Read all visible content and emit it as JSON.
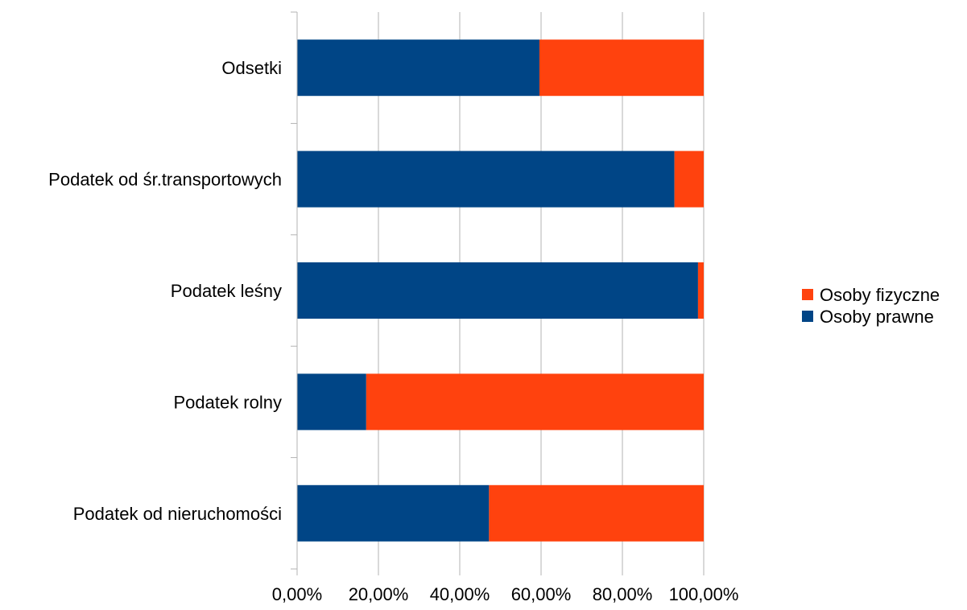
{
  "chart_data": {
    "type": "bar",
    "orientation": "horizontal",
    "stacked": "percent",
    "categories": [
      "Odsetki",
      "Podatek od śr.transportowych",
      "Podatek leśny",
      "Podatek rolny",
      "Podatek od nieruchomości"
    ],
    "series": [
      {
        "name": "Osoby prawne",
        "color": "#004586",
        "values": [
          59.6,
          92.8,
          98.6,
          17.0,
          47.2
        ]
      },
      {
        "name": "Osoby fizyczne",
        "color": "#ff420e",
        "values": [
          40.4,
          7.2,
          1.4,
          83.0,
          52.8
        ]
      }
    ],
    "xlim": [
      0,
      100
    ],
    "x_ticks": [
      "0,00%",
      "20,00%",
      "40,00%",
      "60,00%",
      "80,00%",
      "100,00%"
    ],
    "grid": "vertical",
    "legend": {
      "position": "right",
      "entries": [
        "Osoby fizyczne",
        "Osoby prawne"
      ]
    }
  }
}
